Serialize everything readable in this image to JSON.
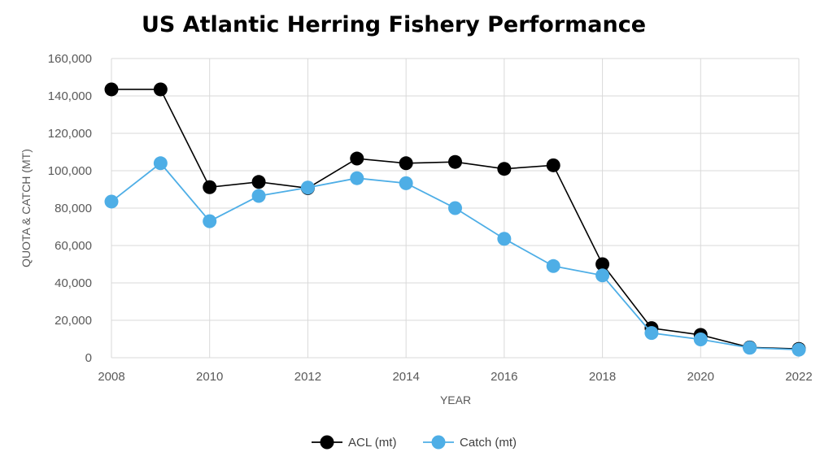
{
  "chart_data": {
    "type": "line",
    "title": "US Atlantic Herring Fishery Performance",
    "xlabel": "YEAR",
    "ylabel": "QUOTA  & CATCH (MT)",
    "xlim": [
      2008,
      2022
    ],
    "ylim": [
      0,
      160000
    ],
    "x_ticks": [
      "2008",
      "2010",
      "2012",
      "2014",
      "2016",
      "2018",
      "2020",
      "2022"
    ],
    "y_ticks": [
      "0",
      "20,000",
      "40,000",
      "60,000",
      "80,000",
      "100,000",
      "120,000",
      "140,000",
      "160,000"
    ],
    "grid": true,
    "legend_position": "bottom",
    "x": [
      2008,
      2009,
      2010,
      2011,
      2012,
      2013,
      2014,
      2015,
      2016,
      2017,
      2018,
      2019,
      2020,
      2021,
      2022
    ],
    "series": [
      {
        "name": "ACL (mt)",
        "color": "#000000",
        "values": [
          143500,
          143500,
          91200,
          94000,
          90700,
          106500,
          104000,
          104700,
          101000,
          102900,
          50000,
          15800,
          12200,
          5500,
          4700
        ]
      },
      {
        "name": "Catch (mt)",
        "color": "#4eaee6",
        "values": [
          83500,
          104000,
          73000,
          86500,
          91000,
          96000,
          93300,
          80000,
          63600,
          49000,
          44000,
          13200,
          9800,
          5300,
          4300
        ]
      }
    ]
  }
}
